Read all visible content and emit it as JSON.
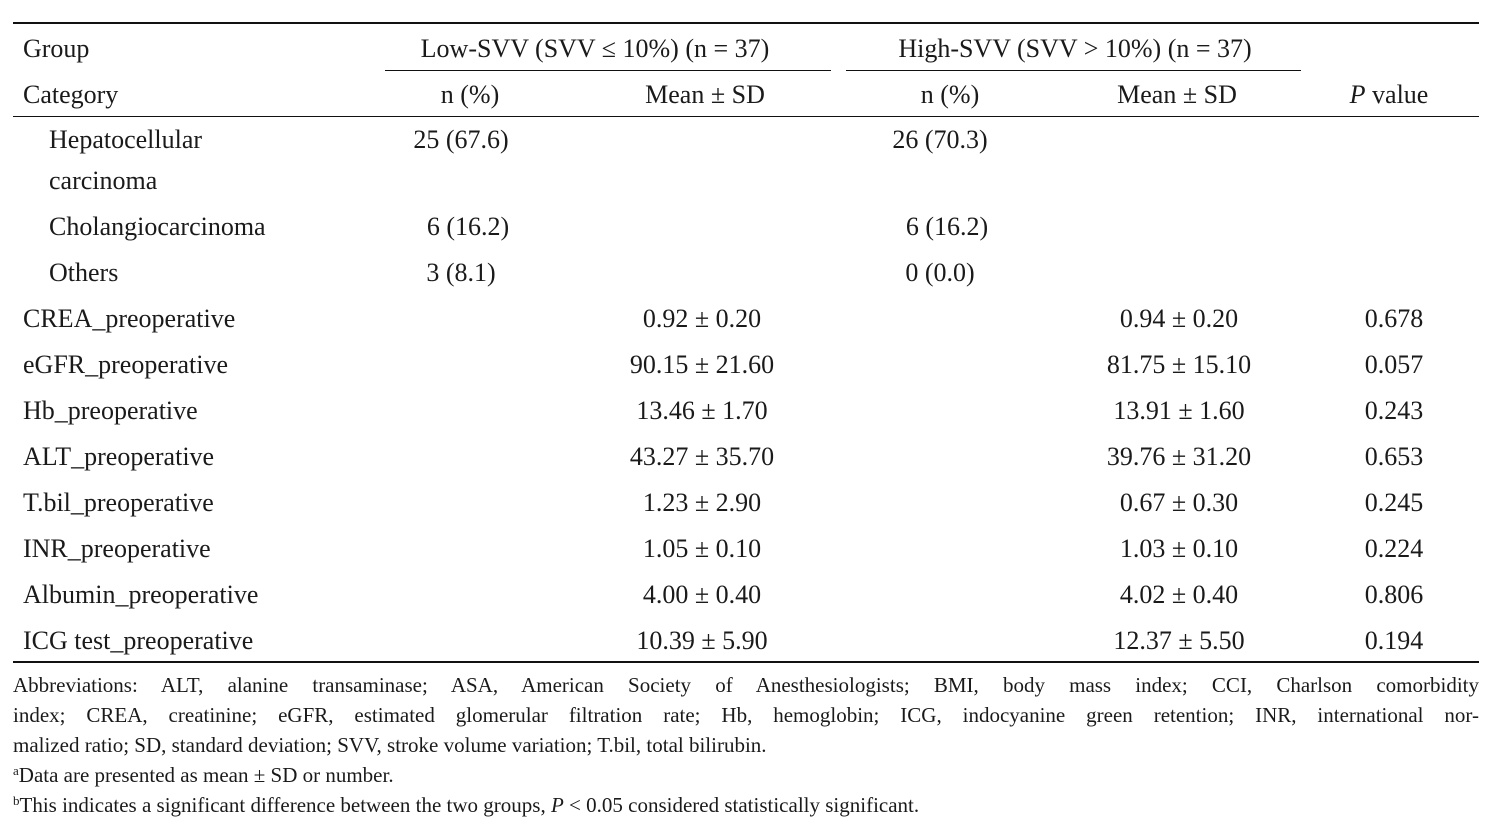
{
  "header": {
    "group_label": "Group",
    "low_group": "Low-SVV (SVV ≤ 10%) (n = 37)",
    "high_group": "High-SVV (SVV > 10%) (n = 37)",
    "category_label": "Category",
    "n_pct_low": "n (%)",
    "mean_sd_low": "Mean ± SD",
    "n_pct_high": "n (%)",
    "mean_sd_high": "Mean ± SD",
    "p_italic": "P",
    "p_rest": " value"
  },
  "rows": [
    {
      "label": "Hepatocellular",
      "label2": "carcinoma",
      "low_n": "25 (67.6)",
      "low_mean": "",
      "high_n": "26 (70.3)",
      "high_mean": "",
      "p": ""
    },
    {
      "label": "Cholangiocarcinoma",
      "low_n": "6 (16.2)",
      "low_mean": "",
      "high_n": "6 (16.2)",
      "high_mean": "",
      "p": ""
    },
    {
      "label": "Others",
      "low_n": "3 (8.1)",
      "low_mean": "",
      "high_n": "0 (0.0)",
      "high_mean": "",
      "p": ""
    },
    {
      "label": "CREA_preoperative",
      "low_n": "",
      "low_mean": "0.92 ± 0.20",
      "high_n": "",
      "high_mean": "0.94 ± 0.20",
      "p": "0.678"
    },
    {
      "label": "eGFR_preoperative",
      "low_n": "",
      "low_mean": "90.15 ± 21.60",
      "high_n": "",
      "high_mean": "81.75 ± 15.10",
      "p": "0.057"
    },
    {
      "label": "Hb_preoperative",
      "low_n": "",
      "low_mean": "13.46 ± 1.70",
      "high_n": "",
      "high_mean": "13.91 ± 1.60",
      "p": "0.243"
    },
    {
      "label": "ALT_preoperative",
      "low_n": "",
      "low_mean": "43.27 ± 35.70",
      "high_n": "",
      "high_mean": "39.76 ± 31.20",
      "p": "0.653"
    },
    {
      "label": "T.bil_preoperative",
      "low_n": "",
      "low_mean": "1.23 ± 2.90",
      "high_n": "",
      "high_mean": "0.67 ± 0.30",
      "p": "0.245"
    },
    {
      "label": "INR_preoperative",
      "low_n": "",
      "low_mean": "1.05 ± 0.10",
      "high_n": "",
      "high_mean": "1.03 ± 0.10",
      "p": "0.224"
    },
    {
      "label": "Albumin_preoperative",
      "low_n": "",
      "low_mean": "4.00 ± 0.40",
      "high_n": "",
      "high_mean": "4.02 ± 0.40",
      "p": "0.806"
    },
    {
      "label": "ICG test_preoperative",
      "low_n": "",
      "low_mean": "10.39 ± 5.90",
      "high_n": "",
      "high_mean": "12.37 ± 5.50",
      "p": "0.194"
    }
  ],
  "footnotes": {
    "abbr_line1": "Abbreviations: ALT, alanine transaminase; ASA, American Society of Anesthesiologists; BMI, body mass index; CCI, Charlson comorbidity",
    "abbr_line2": "index; CREA, creatinine; eGFR, estimated glomerular filtration rate; Hb, hemoglobin; ICG, indocyanine green retention; INR, international nor-",
    "abbr_line3": "malized ratio; SD, standard deviation; SVV, stroke volume variation; T.bil, total bilirubin.",
    "note_a_mark": "a",
    "note_a_text": "Data are presented as mean ± SD or number.",
    "note_b_mark": "b",
    "note_b_text_1": "This indicates a significant difference between the two groups, ",
    "note_b_p": "P",
    "note_b_text_2": " < 0.05 considered statistically significant."
  }
}
